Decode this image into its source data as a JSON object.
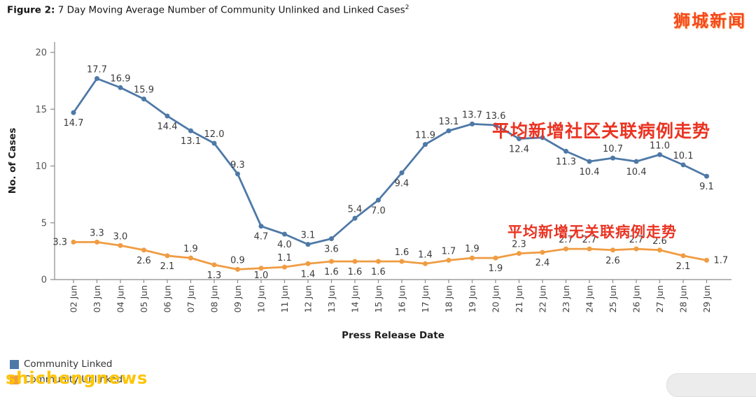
{
  "figure": {
    "label": "Figure 2:",
    "title": " 7 Day Moving Average Number of Community Unlinked and Linked Cases",
    "superscript": "2"
  },
  "watermarks": {
    "top_right": {
      "text": "狮城新闻",
      "color": "#f5481d"
    },
    "bottom_left": {
      "text": "shichengnews",
      "color": "#ffc400"
    }
  },
  "annotations": {
    "color": "#ea3423",
    "linked_trend": "平均新增社区关联病例走势",
    "unlinked_trend": "平均新增无关联病例走势"
  },
  "legend": [
    {
      "label": "Community Linked",
      "color": "#4e79a7"
    },
    {
      "label": "Community Unlinked",
      "color": "#f09c42"
    }
  ],
  "chart_data": {
    "type": "line",
    "title": "7 Day Moving Average Number of Community Unlinked and Linked Cases",
    "xlabel": "Press Release Date",
    "ylabel": "No. of Cases",
    "ylim": [
      0,
      20
    ],
    "y_ticks": [
      0,
      5,
      10,
      15,
      20
    ],
    "grid": false,
    "legend_position": "bottom-left",
    "categories": [
      "02 Jun",
      "03 Jun",
      "04 Jun",
      "05 Jun",
      "06 Jun",
      "07 Jun",
      "08 Jun",
      "09 Jun",
      "10 Jun",
      "11 Jun",
      "12 Jun",
      "13 Jun",
      "14 Jun",
      "15 Jun",
      "16 Jun",
      "17 Jun",
      "18 Jun",
      "19 Jun",
      "20 Jun",
      "21 Jun",
      "22 Jun",
      "23 Jun",
      "24 Jun",
      "25 Jun",
      "26 Jun",
      "27 Jun",
      "28 Jun",
      "29 Jun"
    ],
    "series": [
      {
        "name": "Community Linked",
        "color": "#4e79a7",
        "values": [
          14.7,
          17.7,
          16.9,
          15.9,
          14.4,
          13.1,
          12.0,
          9.3,
          4.7,
          4.0,
          3.1,
          3.6,
          5.4,
          7.0,
          9.4,
          11.9,
          13.1,
          13.7,
          13.6,
          12.4,
          12.5,
          11.3,
          10.4,
          10.7,
          10.4,
          11.0,
          10.1,
          9.1
        ],
        "label_placement": [
          "below",
          "above",
          "above",
          "above",
          "below",
          "below",
          "above",
          "above",
          "below",
          "below",
          "above",
          "below",
          "above",
          "below",
          "below",
          "above",
          "above",
          "above",
          "above",
          "below",
          "none",
          "below",
          "below",
          "above",
          "below",
          "above",
          "above",
          "below"
        ]
      },
      {
        "name": "Community Unlinked",
        "color": "#f09c42",
        "values": [
          3.3,
          3.3,
          3.0,
          2.6,
          2.1,
          1.9,
          1.3,
          0.9,
          1.0,
          1.1,
          1.4,
          1.6,
          1.6,
          1.6,
          1.6,
          1.4,
          1.7,
          1.9,
          1.9,
          2.3,
          2.4,
          2.7,
          2.7,
          2.6,
          2.7,
          2.6,
          2.1,
          1.7
        ],
        "label_placement": [
          "left",
          "above",
          "above",
          "below",
          "below",
          "above",
          "below",
          "above",
          "below",
          "above",
          "below",
          "below",
          "below",
          "below",
          "above",
          "above",
          "above",
          "above",
          "below",
          "above",
          "below",
          "above",
          "above",
          "below",
          "above",
          "above",
          "below",
          "right"
        ]
      }
    ]
  }
}
